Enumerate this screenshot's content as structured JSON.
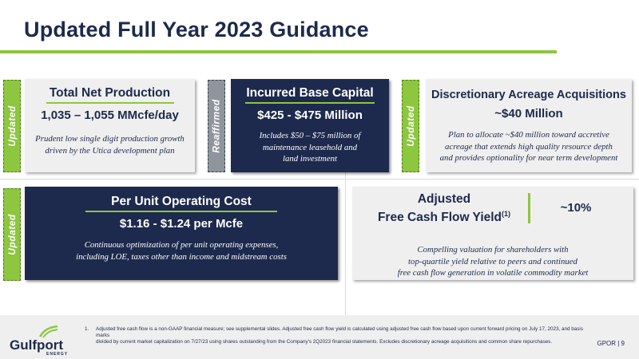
{
  "slide": {
    "title": "Updated Full Year 2023 Guidance"
  },
  "tags": {
    "updated": "Updated",
    "reaffirmed": "Reaffirmed"
  },
  "cards": {
    "production": {
      "title": "Total Net Production",
      "value": "1,035 – 1,055 MMcfe/day",
      "desc_line1": "Prudent low single digit production growth",
      "desc_line2": "driven by the Utica development plan"
    },
    "capital": {
      "title": "Incurred Base Capital",
      "value": "$425 - $475 Million",
      "desc_line1": "Includes $50 – $75 million of",
      "desc_line2": "maintenance leasehold and",
      "desc_line3": "land investment"
    },
    "acreage": {
      "title": "Discretionary Acreage Acquisitions",
      "value": "~$40 Million",
      "desc_line1": "Plan to allocate ~$40 million toward accretive",
      "desc_line2": "acreage that extends high quality resource depth",
      "desc_line3": "and provides optionality for near term development"
    },
    "unit_cost": {
      "title": "Per Unit Operating Cost",
      "value": "$1.16 - $1.24 per Mcfe",
      "desc_line1": "Continuous optimization of per unit operating expenses,",
      "desc_line2": "including LOE, taxes other than income and midstream costs"
    },
    "fcf": {
      "title_line1": "Adjusted",
      "title_line2": "Free Cash Flow Yield",
      "title_sup": "(1)",
      "value": "~10%",
      "desc_line1": "Compelling valuation for shareholders with",
      "desc_line2": "top-quartile yield relative to peers and continued",
      "desc_line3": "free cash flow generation in volatile commodity market"
    }
  },
  "footer": {
    "logo_text": "Gulfport",
    "logo_sub": "ENERGY",
    "footnote_num": "1.",
    "footnote_line1": "Adjusted free cash flow is a non-GAAP financial measure; see supplemental slides. Adjusted free cash flow yield is calculated using adjusted free cash flow based upon current forward pricing on July 17, 2023, and basis marks",
    "footnote_line2": "divided by current market capitalization on 7/27/23 using shares outstanding from the Company's 2Q2023 financial statements. Excludes discretionary acreage acquisitions and common share repurchases.",
    "page": "GPOR | 9"
  },
  "colors": {
    "navy": "#1d2a4d",
    "green": "#8dc63f",
    "gray_tag": "#8f959c",
    "light_card": "#efefef"
  }
}
